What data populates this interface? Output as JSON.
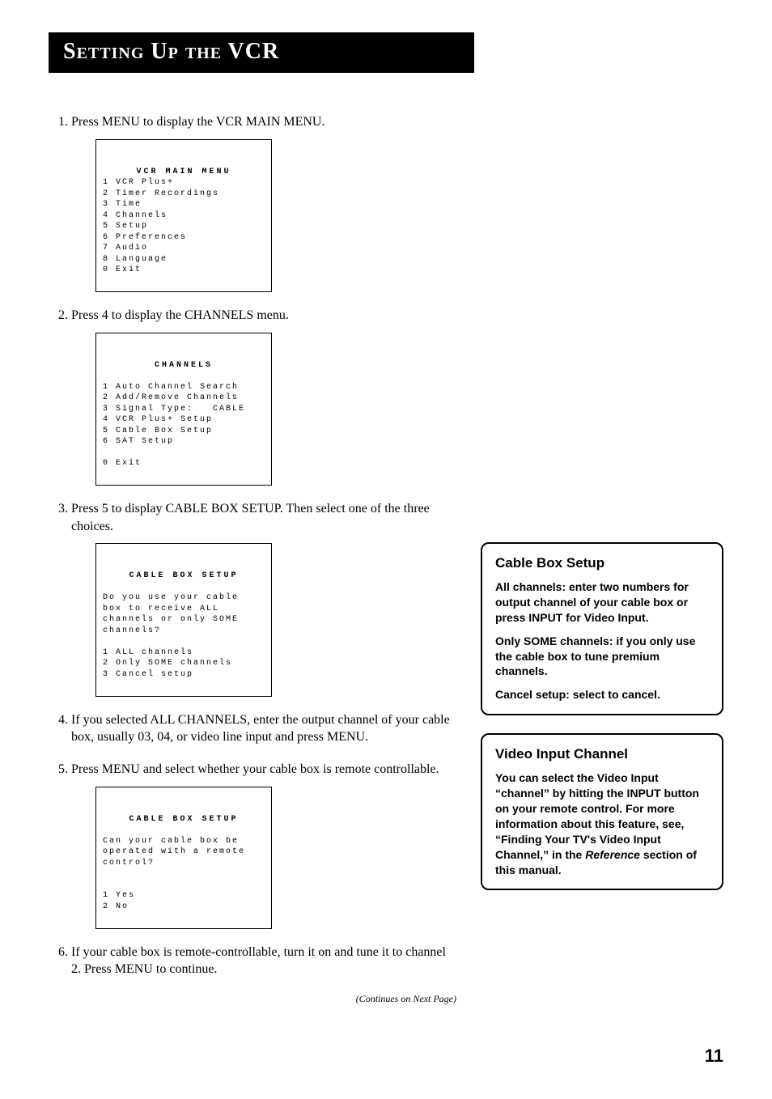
{
  "page_title": "Setting Up the VCR",
  "steps": [
    {
      "text": "Press MENU to display the VCR MAIN MENU."
    },
    {
      "text": "Press 4 to display the CHANNELS menu."
    },
    {
      "text": "Press 5 to display CABLE BOX SETUP. Then select one of the three choices."
    },
    {
      "text": "If you selected ALL CHANNELS, enter the output channel of your cable box, usually 03, 04, or video line input and press MENU."
    },
    {
      "text": "Press MENU and select whether your cable box is remote controllable."
    },
    {
      "text": "If your cable box is remote-controllable, turn it on and tune it to channel 2. Press MENU to continue."
    }
  ],
  "menu1": {
    "title": "VCR MAIN MENU",
    "lines": "1 VCR Plus+\n2 Timer Recordings\n3 Time\n4 Channels\n5 Setup\n6 Preferences\n7 Audio\n8 Language\n0 Exit"
  },
  "menu2": {
    "title": "CHANNELS",
    "lines": "\n1 Auto Channel Search\n2 Add/Remove Channels\n3 Signal Type:   CABLE\n4 VCR Plus+ Setup\n5 Cable Box Setup\n6 SAT Setup\n\n0 Exit"
  },
  "menu3": {
    "title": "CABLE BOX SETUP",
    "lines": "\nDo you use your cable\nbox to receive ALL\nchannels or only SOME\nchannels?\n\n1 ALL channels\n2 Only SOME channels\n3 Cancel setup"
  },
  "menu4": {
    "title": "CABLE BOX SETUP",
    "lines": "\nCan your cable box be\noperated with a remote\ncontrol?\n\n\n1 Yes\n2 No"
  },
  "sidebar1": {
    "heading": "Cable Box Setup",
    "p1": "All channels: enter two numbers for output channel of your cable box or press INPUT for Video Input.",
    "p2": "Only SOME channels: if you only use the cable box to tune premium channels.",
    "p3": "Cancel setup: select to cancel."
  },
  "sidebar2": {
    "heading": "Video Input Channel",
    "p1_a": "You can select the Video Input “channel” by hitting the INPUT button on your remote control. For more information about this feature, see, “Finding Your TV's Video Input Channel,” in the ",
    "p1_ref": "Reference",
    "p1_b": " section of this manual."
  },
  "continue_text": "(Continues on Next Page)",
  "page_number": "11"
}
